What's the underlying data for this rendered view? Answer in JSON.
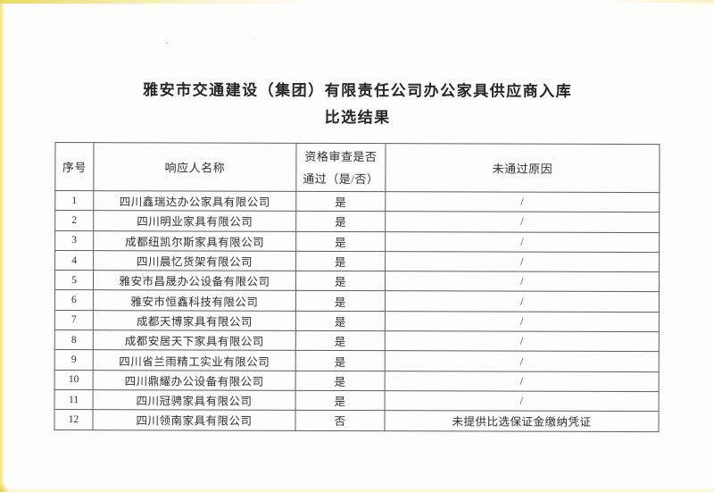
{
  "document": {
    "title_line1": "雅安市交通建设（集团）有限责任公司办公家具供应商入库",
    "title_line2": "比选结果"
  },
  "table": {
    "headers": {
      "index": "序号",
      "name": "响应人名称",
      "qualification_line1": "资格审查是否",
      "qualification_line2": "通过（是/否）",
      "reason": "未通过原因"
    },
    "rows": [
      {
        "index": "1",
        "name": "四川鑫瑞达办公家具有限公司",
        "qualified": "是",
        "reason": "/"
      },
      {
        "index": "2",
        "name": "四川明业家具有限公司",
        "qualified": "是",
        "reason": "/"
      },
      {
        "index": "3",
        "name": "成都纽凯尔斯家具有限公司",
        "qualified": "是",
        "reason": "/"
      },
      {
        "index": "4",
        "name": "四川晨忆货架有限公司",
        "qualified": "是",
        "reason": "/"
      },
      {
        "index": "5",
        "name": "雅安市昌晟办公设备有限公司",
        "qualified": "是",
        "reason": "/"
      },
      {
        "index": "6",
        "name": "雅安市恒鑫科技有限公司",
        "qualified": "是",
        "reason": "/"
      },
      {
        "index": "7",
        "name": "成都天博家具有限公司",
        "qualified": "是",
        "reason": "/"
      },
      {
        "index": "8",
        "name": "成都安居天下家具有限公司",
        "qualified": "是",
        "reason": "/"
      },
      {
        "index": "9",
        "name": "四川省兰雨精工实业有限公司",
        "qualified": "是",
        "reason": "/"
      },
      {
        "index": "10",
        "name": "四川鼎耀办公设备有限公司",
        "qualified": "是",
        "reason": "/"
      },
      {
        "index": "11",
        "name": "四川冠骋家具有限公司",
        "qualified": "是",
        "reason": "/"
      },
      {
        "index": "12",
        "name": "四川领南家具有限公司",
        "qualified": "否",
        "reason": "未提供比选保证金缴纳凭证"
      }
    ]
  },
  "colors": {
    "paper": "#fdfdfc",
    "edge_yellow": "#f0e263",
    "ink": "#2f2f2f",
    "border": "#5e5e60"
  }
}
